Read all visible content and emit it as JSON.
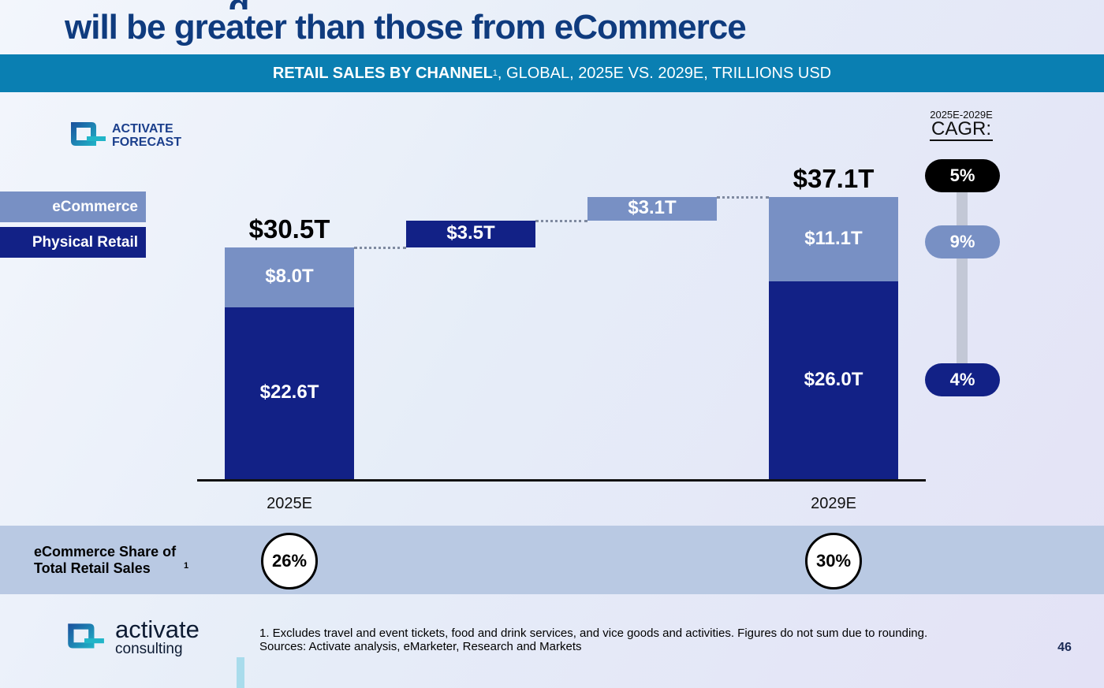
{
  "header": {
    "title_partial": "… , … , … g …",
    "title_line2": "will be greater than those from eCommerce"
  },
  "banner": {
    "bold": "RETAIL SALES BY CHANNEL",
    "sup": "1",
    "rest": ", GLOBAL, 2025E VS. 2029E, TRILLIONS USD"
  },
  "forecast_logo": {
    "line1": "ACTIVATE",
    "line2": "FORECAST"
  },
  "legend": [
    {
      "label": "eCommerce",
      "color": "#7890c4"
    },
    {
      "label": "Physical Retail",
      "color": "#122186"
    }
  ],
  "chart_data": {
    "type": "waterfall",
    "title": "RETAIL SALES BY CHANNEL, GLOBAL, 2025E VS. 2029E, TRILLIONS USD",
    "unit": "Trillions USD",
    "categories": [
      "2025E",
      "",
      "",
      "2029E"
    ],
    "bars": [
      {
        "category": "2025E",
        "physical": 22.6,
        "ecommerce": 8.0,
        "total": 30.5,
        "physical_label": "$22.6T",
        "ecommerce_label": "$8.0T",
        "total_label": "$30.5T"
      },
      {
        "step": "Physical Retail growth",
        "delta": 3.5,
        "label": "$3.5T",
        "series": "Physical Retail"
      },
      {
        "step": "eCommerce growth",
        "delta": 3.1,
        "label": "$3.1T",
        "series": "eCommerce"
      },
      {
        "category": "2029E",
        "physical": 26.0,
        "ecommerce": 11.1,
        "total": 37.1,
        "physical_label": "$26.0T",
        "ecommerce_label": "$11.1T",
        "total_label": "$37.1T"
      }
    ],
    "colors": {
      "physical": "#122186",
      "ecommerce": "#7890c4"
    },
    "ylim": [
      0,
      37.1
    ],
    "cagr": {
      "heading_small": "2025E-2029E",
      "heading": "CAGR:",
      "items": [
        {
          "label": "5%",
          "series": "Total",
          "color": "#000000"
        },
        {
          "label": "9%",
          "series": "eCommerce",
          "color": "#7890c4"
        },
        {
          "label": "4%",
          "series": "Physical Retail",
          "color": "#122186"
        }
      ]
    },
    "ecommerce_share": {
      "label": "eCommerce Share of Total Retail Sales",
      "sup": "1",
      "values": [
        {
          "category": "2025E",
          "label": "26%"
        },
        {
          "category": "2029E",
          "label": "30%"
        }
      ]
    }
  },
  "footer": {
    "logo_name": "activate",
    "logo_sub": "consulting",
    "note": "1. Excludes travel and event tickets, food and drink services, and vice goods and activities. Figures do not sum due to rounding.",
    "sources": "Sources: Activate analysis, eMarketer, Research and Markets",
    "page": "46"
  }
}
